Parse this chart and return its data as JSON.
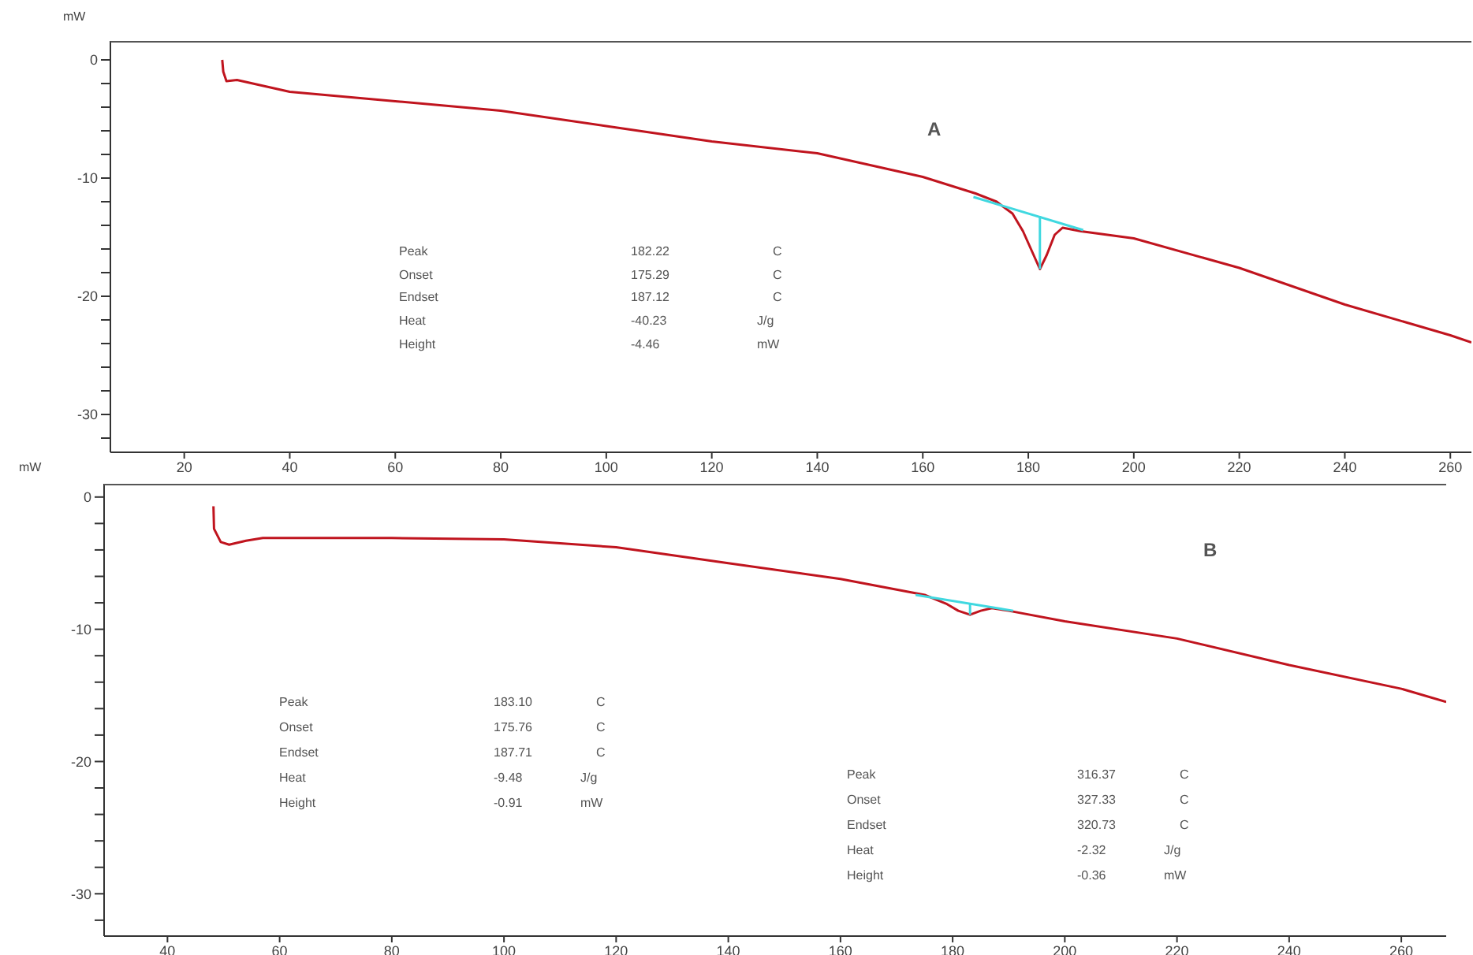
{
  "chart_data": [
    {
      "type": "line",
      "ylabel": "mW",
      "xlim": [
        6,
        264
      ],
      "ylim": [
        -33.2,
        1.6
      ],
      "xticks": [
        20,
        40,
        60,
        80,
        100,
        120,
        140,
        160,
        180,
        200,
        220,
        240,
        260
      ],
      "yticks": [
        0,
        {
          "value": -2,
          "label": null
        },
        {
          "value": -4,
          "label": null
        },
        {
          "value": -6,
          "label": null
        },
        {
          "value": -8,
          "label": null
        },
        -10,
        {
          "value": -12,
          "label": null
        },
        {
          "value": -14,
          "label": null
        },
        {
          "value": -16,
          "label": null
        },
        {
          "value": -18,
          "label": null
        },
        -20,
        {
          "value": -22,
          "label": null
        },
        {
          "value": -24,
          "label": null
        },
        {
          "value": -26,
          "label": null
        },
        {
          "value": -28,
          "label": null
        },
        -30,
        {
          "value": -32,
          "label": null
        }
      ],
      "series": [
        {
          "color": "#c0141e",
          "x": [
            27.2,
            27.4,
            28,
            30,
            40,
            60,
            80,
            100,
            120,
            140,
            160,
            170,
            174,
            177,
            179,
            180.5,
            182.2,
            183.5,
            185,
            186.5,
            190,
            200,
            220,
            240,
            260,
            264
          ],
          "values": [
            0,
            -1,
            -1.8,
            -1.7,
            -2.7,
            -3.5,
            -4.3,
            -5.6,
            -6.9,
            -7.9,
            -9.9,
            -11.3,
            -12,
            -13,
            -14.5,
            -16,
            -17.7,
            -16.5,
            -14.8,
            -14.2,
            -14.5,
            -15.1,
            -17.6,
            -20.7,
            -23.3,
            -23.9
          ]
        },
        {
          "color": "#40d8e0",
          "x": [
            169.6,
            190.4
          ],
          "values": [
            -11.6,
            -14.4
          ]
        },
        {
          "color": "#40d8e0",
          "x": [
            182.2,
            182.2
          ],
          "values": [
            -13.2,
            -17.7
          ]
        }
      ],
      "annotations": [
        "A",
        "Peak 182.22 C",
        "Onset 175.29 C",
        "Endset 187.12 C",
        "Heat -40.23 J/g",
        "Height -4.46 mW"
      ]
    },
    {
      "type": "line",
      "ylabel": "mW",
      "xlim": [
        28.7,
        268
      ],
      "ylim": [
        -33.2,
        1
      ],
      "xticks": [
        40,
        60,
        80,
        100,
        120,
        140,
        160,
        180,
        200,
        220,
        240,
        260
      ],
      "yticks": [
        0,
        {
          "value": -2,
          "label": null
        },
        {
          "value": -4,
          "label": null
        },
        {
          "value": -6,
          "label": null
        },
        {
          "value": -8,
          "label": null
        },
        -10,
        {
          "value": -12,
          "label": null
        },
        {
          "value": -14,
          "label": null
        },
        {
          "value": -16,
          "label": null
        },
        {
          "value": -18,
          "label": null
        },
        -20,
        {
          "value": -22,
          "label": null
        },
        {
          "value": -24,
          "label": null
        },
        {
          "value": -26,
          "label": null
        },
        {
          "value": -28,
          "label": null
        },
        -30,
        {
          "value": -32,
          "label": null
        }
      ],
      "series": [
        {
          "color": "#c0141e",
          "x": [
            48.2,
            48.3,
            49.5,
            51,
            54,
            57,
            80,
            100,
            120,
            140,
            160,
            175,
            179,
            181,
            183.1,
            185,
            187,
            190,
            200,
            220,
            240,
            260,
            268
          ],
          "values": [
            -0.7,
            -2.4,
            -3.4,
            -3.6,
            -3.3,
            -3.1,
            -3.1,
            -3.2,
            -3.8,
            -5,
            -6.2,
            -7.4,
            -8.1,
            -8.6,
            -8.9,
            -8.6,
            -8.4,
            -8.6,
            -9.4,
            -10.7,
            -12.7,
            -14.5,
            -15.5
          ]
        },
        {
          "color": "#40d8e0",
          "x": [
            173.4,
            190.8
          ],
          "values": [
            -7.4,
            -8.6
          ]
        },
        {
          "color": "#40d8e0",
          "x": [
            183.1,
            183.1
          ],
          "values": [
            -8.1,
            -8.9
          ]
        }
      ],
      "annotations": [
        "B",
        "Peak 183.10 C",
        "Onset 175.76 C",
        "Endset 187.71 C",
        "Heat -9.48 J/g",
        "Height -0.91 mW",
        "Peak 316.37 C",
        "Onset 327.33 C",
        "Endset 320.73 C",
        "Heat -2.32 J/g",
        "Height -0.36 mW"
      ]
    }
  ]
}
